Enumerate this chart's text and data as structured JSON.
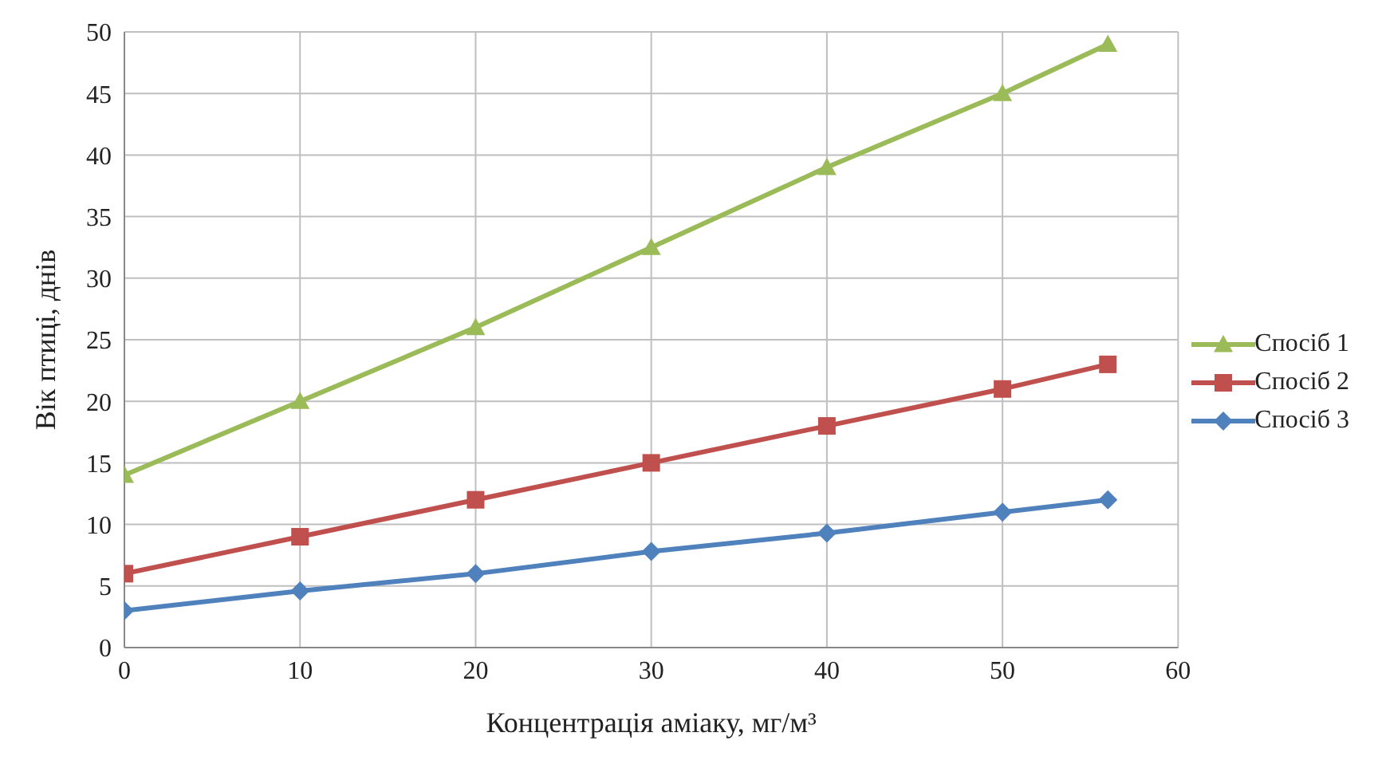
{
  "chart_data": {
    "type": "line",
    "xlabel": "Концентрація аміаку, мг/м³",
    "ylabel": "Вік птиці, днів",
    "x": [
      0,
      10,
      20,
      30,
      40,
      50,
      56
    ],
    "series": [
      {
        "name": "Спосіб 1",
        "color": "#9bbb59",
        "marker": "triangle",
        "values": [
          14,
          20,
          26,
          32.5,
          39,
          45,
          49
        ]
      },
      {
        "name": "Спосіб 2",
        "color": "#c0504d",
        "marker": "square",
        "values": [
          6,
          9,
          12,
          15,
          18,
          21,
          23
        ]
      },
      {
        "name": "Спосіб 3",
        "color": "#4f81bd",
        "marker": "diamond",
        "values": [
          3,
          4.6,
          6,
          7.8,
          9.3,
          11,
          12
        ]
      }
    ],
    "xlim": [
      0,
      60
    ],
    "xticks": [
      0,
      10,
      20,
      30,
      40,
      50,
      60
    ],
    "ylim": [
      0,
      50
    ],
    "yticks": [
      0,
      5,
      10,
      15,
      20,
      25,
      30,
      35,
      40,
      45,
      50
    ],
    "grid": true,
    "legend": "right",
    "line_style": "solid"
  }
}
